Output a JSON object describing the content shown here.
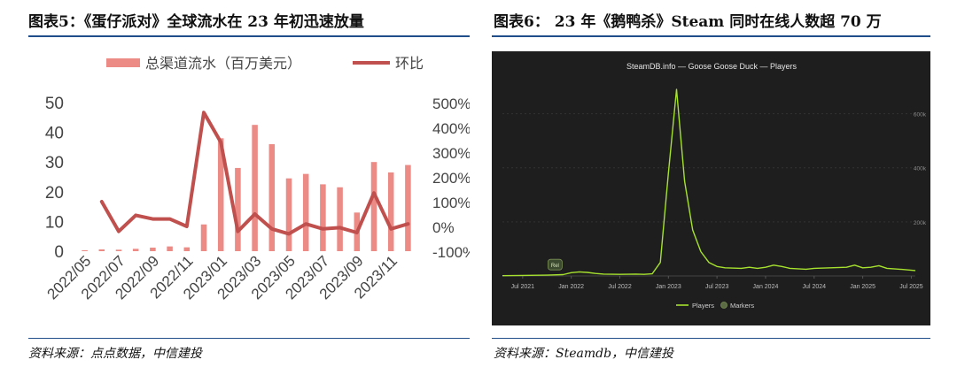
{
  "figure5": {
    "title": "图表5：《蛋仔派对》全球流水在 23 年初迅速放量",
    "source": "资料来源：点点数据，中信建投",
    "chart_data": {
      "type": "bar+line",
      "categories": [
        "2022/05",
        "2022/06",
        "2022/07",
        "2022/08",
        "2022/09",
        "2022/10",
        "2022/11",
        "2022/12",
        "2023/01",
        "2023/02",
        "2023/03",
        "2023/04",
        "2023/05",
        "2023/06",
        "2023/07",
        "2023/08",
        "2023/09",
        "2023/10",
        "2023/11",
        "2023/12"
      ],
      "x_tick_labels": [
        "2022/05",
        "2022/07",
        "2022/09",
        "2022/11",
        "2023/01",
        "2023/03",
        "2023/05",
        "2023/07",
        "2023/09",
        "2023/11"
      ],
      "series": [
        {
          "name": "总渠道流水（百万美元）",
          "kind": "bar",
          "axis": "left",
          "color": "#ec8a86",
          "values": [
            0.3,
            0.6,
            0.5,
            0.8,
            1.2,
            1.6,
            1.3,
            9,
            38,
            28,
            42.5,
            36,
            24.5,
            26,
            22.5,
            21.5,
            13,
            30,
            26.5,
            29
          ]
        },
        {
          "name": "环比",
          "kind": "line",
          "axis": "right",
          "color": "#c0504d",
          "values": [
            null,
            100,
            -20,
            45,
            30,
            30,
            0,
            460,
            340,
            -20,
            50,
            -10,
            -30,
            10,
            -10,
            -5,
            -25,
            135,
            -10,
            10
          ]
        }
      ],
      "ylim_left": [
        0,
        50
      ],
      "yticks_left": [
        0,
        10,
        20,
        30,
        40,
        50
      ],
      "ylim_right": [
        -100,
        500
      ],
      "yticks_right": [
        -100,
        0,
        100,
        200,
        300,
        400,
        500
      ],
      "ytick_labels_right": [
        "-100%",
        "0%",
        "100%",
        "200%",
        "300%",
        "400%",
        "500%"
      ],
      "legend_position": "top"
    }
  },
  "figure6": {
    "title": "图表6： 23 年《鹅鸭杀》Steam 同时在线人数超 70 万",
    "source": "资料来源：Steamdb，中信建投",
    "chart_data": {
      "type": "line",
      "title": "SteamDB.info — Goose Goose Duck — Players",
      "x_tick_labels": [
        "Jul 2021",
        "Jan 2022",
        "Jul 2022",
        "Jan 2023",
        "Jul 2023",
        "Jan 2024",
        "Jul 2024",
        "Jan 2025",
        "Jul 2025"
      ],
      "x_tick_months": [
        0,
        6,
        12,
        18,
        24,
        30,
        36,
        42,
        48
      ],
      "x_range_months": [
        -2.5,
        48.5
      ],
      "ylim": [
        0,
        700
      ],
      "yticks": [
        200,
        400,
        600
      ],
      "ytick_labels": [
        "200k",
        "400k",
        "600k"
      ],
      "series": [
        {
          "name": "Players",
          "color": "#a6e22e",
          "unit": "thousand",
          "points": [
            [
              -2.5,
              1
            ],
            [
              0,
              2
            ],
            [
              3,
              3
            ],
            [
              5,
              5
            ],
            [
              6,
              12
            ],
            [
              7,
              15
            ],
            [
              8,
              13
            ],
            [
              9,
              9
            ],
            [
              10,
              7
            ],
            [
              12,
              6
            ],
            [
              14,
              7
            ],
            [
              15,
              6
            ],
            [
              16,
              8
            ],
            [
              17,
              50
            ],
            [
              18,
              380
            ],
            [
              19,
              690
            ],
            [
              20,
              350
            ],
            [
              21,
              170
            ],
            [
              22,
              90
            ],
            [
              23,
              50
            ],
            [
              24,
              35
            ],
            [
              25,
              30
            ],
            [
              27,
              28
            ],
            [
              28,
              32
            ],
            [
              29,
              28
            ],
            [
              30,
              32
            ],
            [
              31,
              40
            ],
            [
              32,
              35
            ],
            [
              33,
              28
            ],
            [
              35,
              25
            ],
            [
              36,
              28
            ],
            [
              38,
              30
            ],
            [
              40,
              32
            ],
            [
              41,
              40
            ],
            [
              42,
              30
            ],
            [
              43,
              32
            ],
            [
              44,
              38
            ],
            [
              45,
              28
            ],
            [
              46,
              26
            ],
            [
              47,
              24
            ],
            [
              48.5,
              20
            ]
          ]
        }
      ],
      "marker": {
        "label": "Rel",
        "x_month": 4
      },
      "legend": [
        "Players",
        "Markers"
      ],
      "background": "#1e1e1e"
    }
  }
}
